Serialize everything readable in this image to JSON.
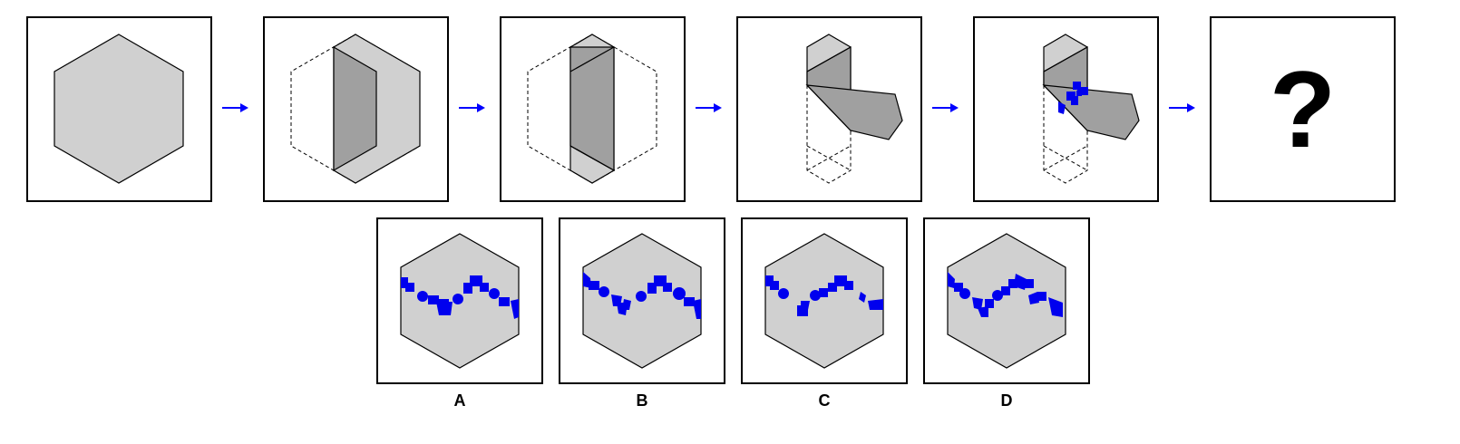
{
  "question": {
    "unknown_symbol": "?"
  },
  "options": [
    {
      "label": "A"
    },
    {
      "label": "B"
    },
    {
      "label": "C"
    },
    {
      "label": "D"
    }
  ],
  "colors": {
    "paper_fill": "#d0d0d0",
    "folded_fill": "#a0a0a0",
    "cut_color": "#0000ee",
    "arrow_color": "#0000ff",
    "outline": "#000000"
  }
}
